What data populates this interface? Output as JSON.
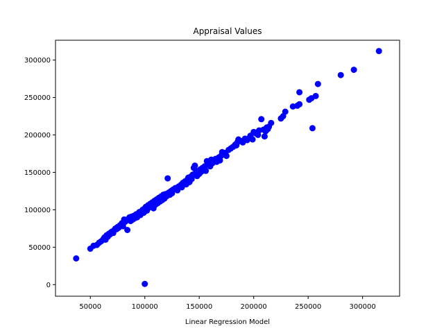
{
  "chart_data": {
    "type": "scatter",
    "title": "Appraisal Values",
    "xlabel": "Linear Regression Model",
    "ylabel": "",
    "xlim": [
      18000,
      334000
    ],
    "ylim": [
      -15500,
      326500
    ],
    "xticks": [
      50000,
      100000,
      150000,
      200000,
      250000,
      300000
    ],
    "yticks": [
      0,
      50000,
      100000,
      150000,
      200000,
      250000,
      300000
    ],
    "xtick_labels": [
      "50000",
      "100000",
      "150000",
      "200000",
      "250000",
      "300000"
    ],
    "ytick_labels": [
      "0",
      "50000",
      "100000",
      "150000",
      "200000",
      "250000",
      "300000"
    ],
    "grid": false,
    "legend": "none",
    "marker_color": "#0000ff",
    "series": [
      {
        "points": [
          [
            37000,
            35000
          ],
          [
            50000,
            48000
          ],
          [
            53000,
            52000
          ],
          [
            56000,
            53000
          ],
          [
            58000,
            56000
          ],
          [
            60000,
            58000
          ],
          [
            62000,
            61000
          ],
          [
            63000,
            63000
          ],
          [
            64000,
            60000
          ],
          [
            65000,
            66000
          ],
          [
            66000,
            64000
          ],
          [
            67000,
            68000
          ],
          [
            68000,
            67000
          ],
          [
            69000,
            70000
          ],
          [
            70000,
            71000
          ],
          [
            71000,
            69000
          ],
          [
            72000,
            73000
          ],
          [
            73000,
            75000
          ],
          [
            74000,
            74000
          ],
          [
            75000,
            77000
          ],
          [
            76000,
            76000
          ],
          [
            77000,
            79000
          ],
          [
            78000,
            80000
          ],
          [
            79000,
            82000
          ],
          [
            80000,
            78000
          ],
          [
            81000,
            87000
          ],
          [
            82000,
            84000
          ],
          [
            83000,
            86000
          ],
          [
            84000,
            73000
          ],
          [
            85000,
            88000
          ],
          [
            86000,
            90000
          ],
          [
            87000,
            85000
          ],
          [
            88000,
            91000
          ],
          [
            89000,
            87000
          ],
          [
            90000,
            92000
          ],
          [
            91000,
            89000
          ],
          [
            92000,
            94000
          ],
          [
            93000,
            90000
          ],
          [
            94000,
            95000
          ],
          [
            95000,
            97000
          ],
          [
            96000,
            93000
          ],
          [
            97000,
            98000
          ],
          [
            98000,
            100000
          ],
          [
            99000,
            96000
          ],
          [
            100000,
            102000
          ],
          [
            101000,
            104000
          ],
          [
            102000,
            99000
          ],
          [
            103000,
            106000
          ],
          [
            104000,
            103000
          ],
          [
            105000,
            108000
          ],
          [
            106000,
            105000
          ],
          [
            107000,
            110000
          ],
          [
            108000,
            102000
          ],
          [
            109000,
            112000
          ],
          [
            110000,
            107000
          ],
          [
            111000,
            114000
          ],
          [
            112000,
            109000
          ],
          [
            113000,
            116000
          ],
          [
            114000,
            111000
          ],
          [
            115000,
            118000
          ],
          [
            116000,
            113000
          ],
          [
            117000,
            120000
          ],
          [
            118000,
            115000
          ],
          [
            119000,
            121000
          ],
          [
            120000,
            118000
          ],
          [
            121000,
            142000
          ],
          [
            122000,
            123000
          ],
          [
            123000,
            120000
          ],
          [
            124000,
            125000
          ],
          [
            125000,
            122000
          ],
          [
            126000,
            127000
          ],
          [
            128000,
            129000
          ],
          [
            130000,
            126000
          ],
          [
            131000,
            131000
          ],
          [
            133000,
            133000
          ],
          [
            134000,
            130000
          ],
          [
            135000,
            136000
          ],
          [
            137000,
            138000
          ],
          [
            138000,
            134000
          ],
          [
            139000,
            140000
          ],
          [
            140000,
            143000
          ],
          [
            141000,
            137000
          ],
          [
            142000,
            144000
          ],
          [
            143000,
            141000
          ],
          [
            144000,
            147000
          ],
          [
            145000,
            156000
          ],
          [
            146000,
            159000
          ],
          [
            147000,
            150000
          ],
          [
            148000,
            145000
          ],
          [
            149000,
            152000
          ],
          [
            150000,
            148000
          ],
          [
            151000,
            154000
          ],
          [
            152000,
            151000
          ],
          [
            153000,
            156000
          ],
          [
            155000,
            158000
          ],
          [
            156000,
            152000
          ],
          [
            157000,
            165000
          ],
          [
            158000,
            160000
          ],
          [
            159000,
            163000
          ],
          [
            160000,
            158000
          ],
          [
            161000,
            167000
          ],
          [
            162000,
            162000
          ],
          [
            163000,
            165000
          ],
          [
            165000,
            168000
          ],
          [
            166000,
            164000
          ],
          [
            168000,
            170000
          ],
          [
            169000,
            166000
          ],
          [
            170000,
            172000
          ],
          [
            171000,
            177000
          ],
          [
            172000,
            175000
          ],
          [
            174000,
            176000
          ],
          [
            175000,
            172000
          ],
          [
            177000,
            180000
          ],
          [
            179000,
            182000
          ],
          [
            181000,
            184000
          ],
          [
            183000,
            187000
          ],
          [
            184000,
            186000
          ],
          [
            185000,
            190000
          ],
          [
            186000,
            194000
          ],
          [
            188000,
            192000
          ],
          [
            190000,
            190000
          ],
          [
            192000,
            195000
          ],
          [
            194000,
            193000
          ],
          [
            196000,
            196000
          ],
          [
            197000,
            199000
          ],
          [
            199000,
            194000
          ],
          [
            200000,
            204000
          ],
          [
            202000,
            202000
          ],
          [
            204000,
            200000
          ],
          [
            205000,
            206000
          ],
          [
            207000,
            221000
          ],
          [
            209000,
            207000
          ],
          [
            210000,
            198000
          ],
          [
            211000,
            205000
          ],
          [
            212000,
            210000
          ],
          [
            213000,
            208000
          ],
          [
            214000,
            211000
          ],
          [
            216000,
            216000
          ],
          [
            225000,
            222000
          ],
          [
            227000,
            225000
          ],
          [
            229000,
            231000
          ],
          [
            236000,
            238000
          ],
          [
            240000,
            239000
          ],
          [
            242000,
            241000
          ],
          [
            242000,
            257000
          ],
          [
            251000,
            247000
          ],
          [
            253000,
            249000
          ],
          [
            254000,
            209000
          ],
          [
            257000,
            252000
          ],
          [
            259000,
            268000
          ],
          [
            280000,
            280000
          ],
          [
            292000,
            287000
          ],
          [
            315000,
            312000
          ],
          [
            100000,
            1000
          ]
        ]
      }
    ]
  }
}
